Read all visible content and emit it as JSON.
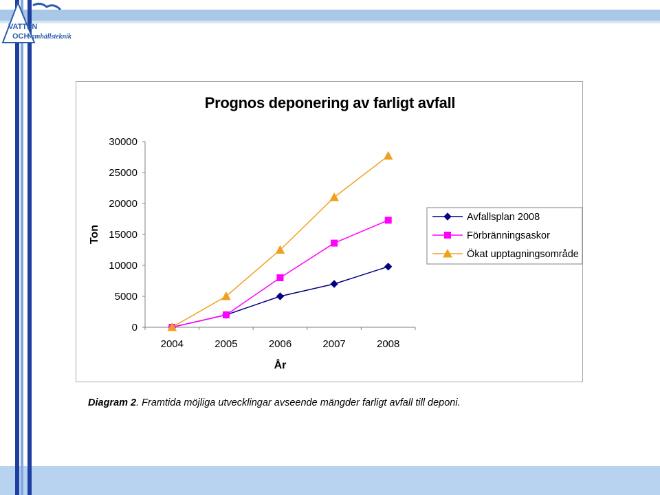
{
  "logo": {
    "line1": "VATTEN",
    "line2": "OCH",
    "line3": "Samhällsteknik"
  },
  "colors": {
    "band": "#a9c8e8",
    "stripe_dark": "#1f3fa0",
    "stripe_light": "#7fa8e0"
  },
  "chart_data": {
    "type": "line",
    "title": "Prognos deponering av farligt avfall",
    "xlabel": "År",
    "ylabel": "Ton",
    "categories": [
      "2004",
      "2005",
      "2006",
      "2007",
      "2008"
    ],
    "ylim": [
      0,
      30000
    ],
    "yticks": [
      "0",
      "5000",
      "10000",
      "15000",
      "20000",
      "25000",
      "30000"
    ],
    "grid": false,
    "legend_position": "right",
    "series": [
      {
        "name": "Avfallsplan 2008",
        "values": [
          0,
          2000,
          5000,
          7000,
          9800
        ],
        "color": "#000080",
        "marker": "diamond"
      },
      {
        "name": "Förbränningsaskor",
        "values": [
          0,
          2000,
          8000,
          13600,
          17300
        ],
        "color": "#ff00ff",
        "marker": "square"
      },
      {
        "name": "Ökat upptagningsområde",
        "values": [
          0,
          5000,
          12500,
          21000,
          27700
        ],
        "color": "#f0a020",
        "marker": "triangle"
      }
    ]
  },
  "caption": {
    "label": "Diagram 2",
    "text": ". Framtida möjliga utvecklingar avseende mängder farligt avfall till deponi."
  }
}
